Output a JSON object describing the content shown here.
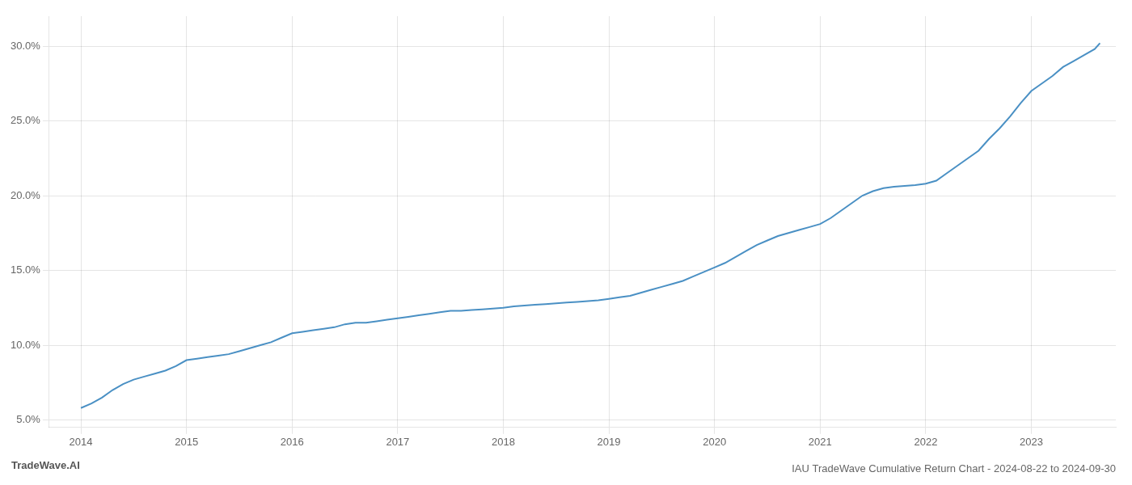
{
  "chart_data": {
    "type": "line",
    "title": "IAU TradeWave Cumulative Return Chart - 2024-08-22 to 2024-09-30",
    "annotations": [
      "TradeWave.AI"
    ],
    "x": [
      2014.0,
      2014.1,
      2014.2,
      2014.3,
      2014.4,
      2014.5,
      2014.6,
      2014.7,
      2014.8,
      2014.9,
      2015.0,
      2015.1,
      2015.2,
      2015.3,
      2015.4,
      2015.5,
      2015.6,
      2015.7,
      2015.8,
      2015.9,
      2016.0,
      2016.1,
      2016.2,
      2016.3,
      2016.4,
      2016.5,
      2016.6,
      2016.7,
      2016.8,
      2016.9,
      2017.0,
      2017.1,
      2017.2,
      2017.3,
      2017.4,
      2017.5,
      2017.6,
      2017.7,
      2017.8,
      2017.9,
      2018.0,
      2018.1,
      2018.2,
      2018.3,
      2018.4,
      2018.5,
      2018.6,
      2018.7,
      2018.8,
      2018.9,
      2019.0,
      2019.1,
      2019.2,
      2019.3,
      2019.4,
      2019.5,
      2019.6,
      2019.7,
      2019.8,
      2019.9,
      2020.0,
      2020.1,
      2020.2,
      2020.3,
      2020.4,
      2020.5,
      2020.6,
      2020.7,
      2020.8,
      2020.9,
      2021.0,
      2021.1,
      2021.2,
      2021.3,
      2021.4,
      2021.5,
      2021.6,
      2021.7,
      2021.8,
      2021.9,
      2022.0,
      2022.1,
      2022.2,
      2022.3,
      2022.4,
      2022.5,
      2022.6,
      2022.7,
      2022.8,
      2022.9,
      2023.0,
      2023.1,
      2023.2,
      2023.3,
      2023.4,
      2023.5,
      2023.6,
      2023.65
    ],
    "values": [
      5.8,
      6.1,
      6.5,
      7.0,
      7.4,
      7.7,
      7.9,
      8.1,
      8.3,
      8.6,
      9.0,
      9.1,
      9.2,
      9.3,
      9.4,
      9.6,
      9.8,
      10.0,
      10.2,
      10.5,
      10.8,
      10.9,
      11.0,
      11.1,
      11.2,
      11.4,
      11.5,
      11.5,
      11.6,
      11.7,
      11.8,
      11.9,
      12.0,
      12.1,
      12.2,
      12.3,
      12.3,
      12.35,
      12.4,
      12.45,
      12.5,
      12.6,
      12.65,
      12.7,
      12.75,
      12.8,
      12.85,
      12.9,
      12.95,
      13.0,
      13.1,
      13.2,
      13.3,
      13.5,
      13.7,
      13.9,
      14.1,
      14.3,
      14.6,
      14.9,
      15.2,
      15.5,
      15.9,
      16.3,
      16.7,
      17.0,
      17.3,
      17.5,
      17.7,
      17.9,
      18.1,
      18.5,
      19.0,
      19.5,
      20.0,
      20.3,
      20.5,
      20.6,
      20.65,
      20.7,
      20.8,
      21.0,
      21.5,
      22.0,
      22.5,
      23.0,
      23.8,
      24.5,
      25.3,
      26.2,
      27.0,
      27.5,
      28.0,
      28.6,
      29.0,
      29.4,
      29.8,
      30.2
    ],
    "color": "#4a90c4",
    "xlim": [
      2013.7,
      2023.8
    ],
    "xticks": [
      2014,
      2015,
      2016,
      2017,
      2018,
      2019,
      2020,
      2021,
      2022,
      2023
    ],
    "ylim": [
      4.5,
      32.0
    ],
    "yticks": [
      {
        "value": 5.0,
        "label": "5.0%"
      },
      {
        "value": 10.0,
        "label": "10.0%"
      },
      {
        "value": 15.0,
        "label": "15.0%"
      },
      {
        "value": 20.0,
        "label": "20.0%"
      },
      {
        "value": 25.0,
        "label": "25.0%"
      },
      {
        "value": 30.0,
        "label": "30.0%"
      }
    ],
    "grid": true
  }
}
